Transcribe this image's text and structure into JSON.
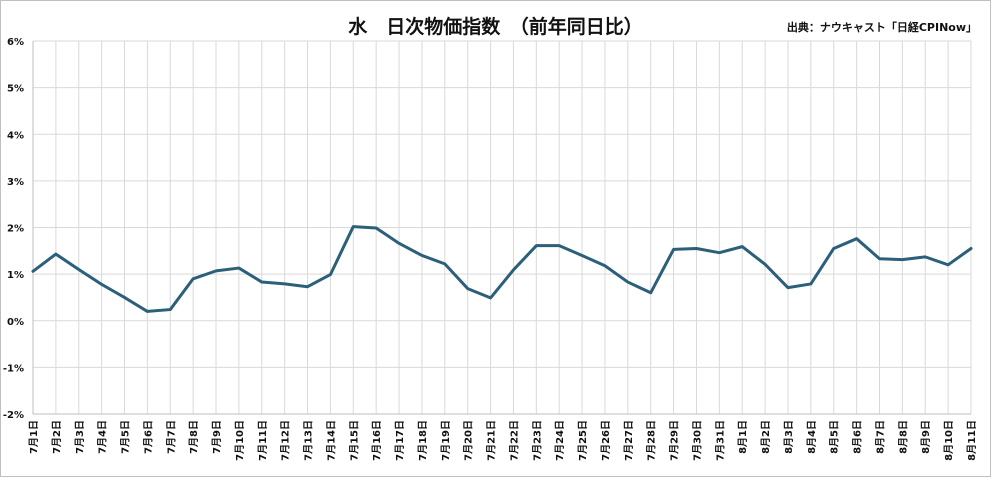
{
  "chart_data": {
    "type": "line",
    "title": "水　日次物価指数　（前年同日比）",
    "source": "出典：ナウキャスト「日経CPINow」",
    "xlabel": "",
    "ylabel": "",
    "ylim": [
      -2,
      6
    ],
    "y_ticks": [
      "-2%",
      "-1%",
      "0%",
      "1%",
      "2%",
      "3%",
      "4%",
      "5%",
      "6%"
    ],
    "y_tick_values": [
      -2,
      -1,
      0,
      1,
      2,
      3,
      4,
      5,
      6
    ],
    "grid": true,
    "legend": "none",
    "line_color": "#2b5f7a",
    "categories": [
      "7月1日",
      "7月2日",
      "7月3日",
      "7月4日",
      "7月5日",
      "7月6日",
      "7月7日",
      "7月8日",
      "7月9日",
      "7月10日",
      "7月11日",
      "7月12日",
      "7月13日",
      "7月14日",
      "7月15日",
      "7月16日",
      "7月17日",
      "7月18日",
      "7月19日",
      "7月20日",
      "7月21日",
      "7月22日",
      "7月23日",
      "7月24日",
      "7月25日",
      "7月26日",
      "7月27日",
      "7月28日",
      "7月29日",
      "7月30日",
      "7月31日",
      "8月1日",
      "8月2日",
      "8月3日",
      "8月4日",
      "8月5日",
      "8月6日",
      "8月7日",
      "8月8日",
      "8月9日",
      "8月10日",
      "8月11日"
    ],
    "series": [
      {
        "values": [
          1.06,
          1.43,
          1.1,
          0.78,
          0.5,
          0.2,
          0.24,
          0.9,
          1.07,
          1.13,
          0.83,
          0.79,
          0.73,
          0.99,
          2.02,
          1.99,
          1.66,
          1.4,
          1.22,
          0.69,
          0.49,
          1.09,
          1.61,
          1.61,
          1.4,
          1.18,
          0.83,
          0.6,
          1.53,
          1.55,
          1.46,
          1.59,
          1.21,
          0.71,
          0.79,
          1.55,
          1.76,
          1.33,
          1.31,
          1.37,
          1.2,
          1.55
        ]
      }
    ]
  }
}
